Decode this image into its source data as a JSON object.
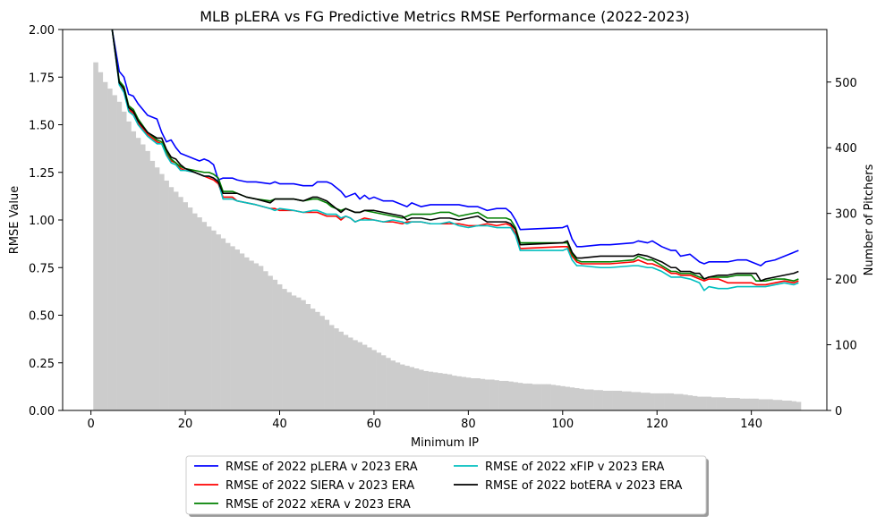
{
  "chart_data": {
    "type": "line",
    "title": "MLB pLERA vs FG Predictive Metrics RMSE Performance (2022-2023)",
    "xlabel": "Minimum IP",
    "ylabel": "RMSE Value",
    "y2label": "Number of Pitchers",
    "xlim": [
      -6,
      156
    ],
    "ylim": [
      0,
      2.0
    ],
    "y2lim": [
      0,
      580
    ],
    "xticks": [
      0,
      20,
      40,
      60,
      80,
      100,
      120,
      140
    ],
    "xtick_labels": [
      "0",
      "20",
      "40",
      "60",
      "80",
      "100",
      "120",
      "140"
    ],
    "yticks": [
      0,
      0.25,
      0.5,
      0.75,
      1.0,
      1.25,
      1.5,
      1.75,
      2.0
    ],
    "ytick_labels": [
      "0.00",
      "0.25",
      "0.50",
      "0.75",
      "1.00",
      "1.25",
      "1.50",
      "1.75",
      "2.00"
    ],
    "y2ticks": [
      0,
      100,
      200,
      300,
      400,
      500
    ],
    "y2tick_labels": [
      "0",
      "100",
      "200",
      "300",
      "400",
      "500"
    ],
    "grid": false,
    "legend_position": "bottom-center",
    "bar_color": "#cccccc",
    "histogram": {
      "name": "Number of Pitchers",
      "x_start": 0.5,
      "x_step": 1,
      "values": [
        530,
        515,
        500,
        490,
        480,
        470,
        455,
        440,
        425,
        415,
        405,
        395,
        380,
        370,
        360,
        350,
        340,
        333,
        325,
        317,
        309,
        300,
        294,
        287,
        280,
        274,
        268,
        262,
        255,
        250,
        245,
        239,
        233,
        228,
        224,
        220,
        212,
        205,
        199,
        192,
        185,
        180,
        175,
        172,
        168,
        162,
        155,
        150,
        144,
        138,
        130,
        125,
        120,
        115,
        111,
        107,
        104,
        100,
        96,
        92,
        88,
        84,
        80,
        76,
        73,
        70,
        68,
        66,
        64,
        62,
        60,
        59,
        58,
        57,
        56,
        55,
        53,
        52,
        51,
        50,
        49,
        49,
        48,
        47,
        47,
        46,
        45,
        45,
        44,
        43,
        42,
        41,
        41,
        40,
        40,
        40,
        40,
        39,
        38,
        37,
        36,
        35,
        34,
        33,
        32,
        32,
        31,
        31,
        30,
        30,
        30,
        30,
        29,
        29,
        28,
        28,
        27,
        27,
        26,
        26,
        26,
        26,
        26,
        25,
        25,
        24,
        23,
        22,
        21,
        21,
        21,
        20,
        20,
        20,
        19,
        19,
        19,
        18,
        18,
        18,
        18,
        17,
        17,
        17,
        16,
        16,
        15,
        15,
        14,
        13
      ],
      "label": ""
    },
    "series": [
      {
        "name": "RMSE of 2022 pLERA v 2023 ERA",
        "color": "#0000ff",
        "x": [
          4.5,
          6,
          7,
          8,
          9,
          10,
          12,
          14,
          15,
          16,
          17,
          18,
          19,
          20,
          21,
          22,
          23,
          24,
          25,
          26,
          27,
          28,
          29,
          30,
          31,
          33,
          35,
          38,
          39,
          40,
          43,
          45,
          47,
          48,
          50,
          51,
          52,
          53,
          54,
          55,
          56,
          57,
          58,
          59,
          60,
          62,
          64,
          66,
          67,
          68,
          70,
          72,
          74,
          76,
          78,
          80,
          82,
          84,
          86,
          88,
          89,
          90,
          91,
          100,
          101,
          102,
          103,
          104,
          108,
          110,
          115,
          116,
          118,
          119,
          121,
          123,
          124,
          125,
          127,
          128,
          129,
          130,
          131,
          133,
          135,
          137,
          139,
          140,
          141,
          142,
          143,
          145,
          147,
          149,
          150
        ],
        "y": [
          2.0,
          1.78,
          1.75,
          1.66,
          1.65,
          1.61,
          1.55,
          1.53,
          1.46,
          1.41,
          1.42,
          1.38,
          1.35,
          1.34,
          1.33,
          1.32,
          1.31,
          1.32,
          1.31,
          1.29,
          1.21,
          1.22,
          1.22,
          1.22,
          1.21,
          1.2,
          1.2,
          1.19,
          1.2,
          1.19,
          1.19,
          1.18,
          1.18,
          1.2,
          1.2,
          1.19,
          1.17,
          1.15,
          1.12,
          1.13,
          1.14,
          1.11,
          1.13,
          1.11,
          1.12,
          1.1,
          1.1,
          1.08,
          1.07,
          1.09,
          1.07,
          1.08,
          1.08,
          1.08,
          1.08,
          1.07,
          1.07,
          1.05,
          1.06,
          1.06,
          1.04,
          1.0,
          0.95,
          0.96,
          0.97,
          0.9,
          0.86,
          0.86,
          0.87,
          0.87,
          0.88,
          0.89,
          0.88,
          0.89,
          0.86,
          0.84,
          0.84,
          0.81,
          0.82,
          0.8,
          0.78,
          0.77,
          0.78,
          0.78,
          0.78,
          0.79,
          0.79,
          0.78,
          0.77,
          0.76,
          0.78,
          0.79,
          0.81,
          0.83,
          0.84
        ]
      },
      {
        "name": "RMSE of 2022 SIERA v 2023 ERA",
        "color": "#ff0000",
        "x": [
          4.5,
          6,
          7,
          8,
          9,
          10,
          12,
          14,
          15,
          16,
          17,
          18,
          19,
          20,
          22,
          24,
          25,
          26,
          27,
          28,
          30,
          31,
          33,
          35,
          38,
          39,
          40,
          43,
          45,
          47,
          48,
          50,
          51,
          52,
          53,
          54,
          55,
          56,
          57,
          58,
          60,
          62,
          64,
          66,
          67,
          68,
          70,
          72,
          74,
          76,
          78,
          80,
          82,
          84,
          86,
          88,
          89,
          90,
          91,
          100,
          101,
          102,
          103,
          104,
          108,
          110,
          115,
          116,
          118,
          119,
          121,
          123,
          124,
          125,
          127,
          128,
          129,
          130,
          131,
          133,
          135,
          137,
          139,
          140,
          141,
          142,
          143,
          145,
          147,
          149,
          150
        ],
        "y": [
          2.0,
          1.72,
          1.68,
          1.58,
          1.56,
          1.51,
          1.45,
          1.41,
          1.4,
          1.35,
          1.31,
          1.3,
          1.27,
          1.26,
          1.25,
          1.23,
          1.22,
          1.21,
          1.19,
          1.12,
          1.12,
          1.1,
          1.09,
          1.08,
          1.06,
          1.06,
          1.05,
          1.05,
          1.04,
          1.04,
          1.04,
          1.02,
          1.02,
          1.02,
          1.0,
          1.02,
          1.01,
          0.99,
          1.0,
          1.01,
          1.0,
          0.99,
          0.99,
          0.98,
          0.99,
          0.99,
          0.99,
          0.98,
          0.98,
          0.98,
          0.98,
          0.97,
          0.97,
          0.98,
          0.97,
          0.98,
          0.97,
          0.93,
          0.85,
          0.86,
          0.86,
          0.81,
          0.78,
          0.77,
          0.77,
          0.77,
          0.78,
          0.79,
          0.77,
          0.77,
          0.75,
          0.72,
          0.72,
          0.71,
          0.71,
          0.7,
          0.69,
          0.68,
          0.69,
          0.69,
          0.67,
          0.67,
          0.67,
          0.67,
          0.66,
          0.66,
          0.66,
          0.67,
          0.68,
          0.67,
          0.68
        ]
      },
      {
        "name": "RMSE of 2022 xERA v 2023 ERA",
        "color": "#008000",
        "x": [
          4.5,
          6,
          7,
          8,
          9,
          10,
          12,
          14,
          15,
          16,
          17,
          18,
          19,
          20,
          22,
          24,
          25,
          26,
          27,
          28,
          30,
          31,
          33,
          35,
          38,
          39,
          40,
          43,
          45,
          47,
          48,
          50,
          51,
          52,
          53,
          54,
          55,
          56,
          57,
          58,
          60,
          62,
          64,
          66,
          67,
          68,
          70,
          72,
          74,
          76,
          78,
          80,
          82,
          84,
          86,
          88,
          89,
          90,
          91,
          100,
          101,
          102,
          103,
          104,
          108,
          110,
          115,
          116,
          118,
          119,
          121,
          123,
          124,
          125,
          127,
          128,
          129,
          130,
          131,
          133,
          135,
          137,
          139,
          140,
          141,
          142,
          143,
          145,
          147,
          149,
          150
        ],
        "y": [
          2.0,
          1.73,
          1.7,
          1.6,
          1.58,
          1.53,
          1.46,
          1.42,
          1.41,
          1.36,
          1.32,
          1.3,
          1.28,
          1.27,
          1.26,
          1.25,
          1.25,
          1.24,
          1.22,
          1.15,
          1.15,
          1.14,
          1.12,
          1.11,
          1.1,
          1.11,
          1.11,
          1.11,
          1.1,
          1.11,
          1.11,
          1.09,
          1.07,
          1.06,
          1.05,
          1.06,
          1.05,
          1.04,
          1.04,
          1.05,
          1.04,
          1.03,
          1.02,
          1.01,
          1.02,
          1.03,
          1.03,
          1.03,
          1.04,
          1.04,
          1.02,
          1.03,
          1.04,
          1.01,
          1.01,
          1.01,
          1.0,
          0.96,
          0.88,
          0.88,
          0.88,
          0.82,
          0.79,
          0.78,
          0.78,
          0.78,
          0.79,
          0.81,
          0.79,
          0.79,
          0.76,
          0.73,
          0.73,
          0.72,
          0.72,
          0.71,
          0.7,
          0.69,
          0.7,
          0.7,
          0.7,
          0.71,
          0.71,
          0.71,
          0.68,
          0.68,
          0.68,
          0.69,
          0.69,
          0.68,
          0.69
        ]
      },
      {
        "name": "RMSE of 2022 xFIP v 2023 ERA",
        "color": "#00bfbf",
        "x": [
          4.5,
          6,
          7,
          8,
          9,
          10,
          12,
          14,
          15,
          16,
          17,
          18,
          19,
          20,
          22,
          24,
          25,
          26,
          27,
          28,
          30,
          31,
          33,
          35,
          38,
          39,
          40,
          43,
          45,
          47,
          48,
          50,
          51,
          52,
          53,
          54,
          55,
          56,
          57,
          58,
          60,
          62,
          64,
          66,
          67,
          68,
          70,
          72,
          74,
          76,
          78,
          80,
          82,
          84,
          86,
          88,
          89,
          90,
          91,
          100,
          101,
          102,
          103,
          104,
          108,
          110,
          115,
          116,
          118,
          119,
          121,
          123,
          124,
          125,
          127,
          128,
          129,
          130,
          131,
          133,
          135,
          137,
          139,
          140,
          141,
          142,
          143,
          145,
          147,
          149,
          150
        ],
        "y": [
          2.0,
          1.71,
          1.67,
          1.57,
          1.55,
          1.5,
          1.44,
          1.4,
          1.4,
          1.34,
          1.3,
          1.29,
          1.26,
          1.26,
          1.25,
          1.23,
          1.23,
          1.22,
          1.2,
          1.11,
          1.11,
          1.1,
          1.09,
          1.08,
          1.06,
          1.05,
          1.06,
          1.05,
          1.04,
          1.05,
          1.05,
          1.03,
          1.03,
          1.03,
          1.01,
          1.02,
          1.01,
          0.99,
          1.0,
          1.0,
          1.0,
          0.99,
          1.0,
          0.99,
          0.98,
          0.99,
          0.99,
          0.98,
          0.98,
          0.99,
          0.97,
          0.96,
          0.97,
          0.97,
          0.96,
          0.96,
          0.96,
          0.92,
          0.84,
          0.84,
          0.85,
          0.79,
          0.76,
          0.76,
          0.75,
          0.75,
          0.76,
          0.76,
          0.75,
          0.75,
          0.73,
          0.7,
          0.7,
          0.7,
          0.69,
          0.68,
          0.67,
          0.63,
          0.65,
          0.64,
          0.64,
          0.65,
          0.65,
          0.65,
          0.65,
          0.65,
          0.65,
          0.66,
          0.67,
          0.66,
          0.67
        ]
      },
      {
        "name": "RMSE of 2022 botERA v 2023 ERA",
        "color": "#000000",
        "x": [
          4.5,
          6,
          7,
          8,
          9,
          10,
          12,
          14,
          15,
          16,
          17,
          18,
          19,
          20,
          22,
          24,
          25,
          26,
          27,
          28,
          30,
          31,
          33,
          35,
          38,
          39,
          40,
          43,
          45,
          47,
          48,
          50,
          51,
          52,
          53,
          54,
          55,
          56,
          57,
          58,
          60,
          62,
          64,
          66,
          67,
          68,
          70,
          72,
          74,
          76,
          78,
          80,
          82,
          84,
          86,
          88,
          89,
          90,
          91,
          100,
          101,
          102,
          103,
          104,
          108,
          110,
          115,
          116,
          118,
          119,
          121,
          123,
          124,
          125,
          127,
          128,
          129,
          130,
          131,
          133,
          135,
          137,
          139,
          140,
          141,
          142,
          143,
          145,
          147,
          149,
          150
        ],
        "y": [
          2.0,
          1.72,
          1.69,
          1.59,
          1.57,
          1.52,
          1.46,
          1.43,
          1.43,
          1.37,
          1.33,
          1.32,
          1.29,
          1.27,
          1.25,
          1.23,
          1.23,
          1.22,
          1.2,
          1.14,
          1.14,
          1.14,
          1.12,
          1.11,
          1.09,
          1.11,
          1.11,
          1.11,
          1.1,
          1.12,
          1.12,
          1.1,
          1.08,
          1.06,
          1.04,
          1.06,
          1.05,
          1.04,
          1.04,
          1.05,
          1.05,
          1.04,
          1.03,
          1.02,
          1.0,
          1.01,
          1.01,
          1.0,
          1.01,
          1.01,
          1.0,
          1.01,
          1.02,
          0.99,
          0.99,
          0.99,
          0.98,
          0.95,
          0.87,
          0.88,
          0.89,
          0.83,
          0.8,
          0.8,
          0.81,
          0.81,
          0.81,
          0.82,
          0.81,
          0.8,
          0.78,
          0.75,
          0.75,
          0.73,
          0.73,
          0.72,
          0.72,
          0.69,
          0.7,
          0.71,
          0.71,
          0.72,
          0.72,
          0.72,
          0.72,
          0.68,
          0.69,
          0.7,
          0.71,
          0.72,
          0.73
        ]
      }
    ]
  }
}
